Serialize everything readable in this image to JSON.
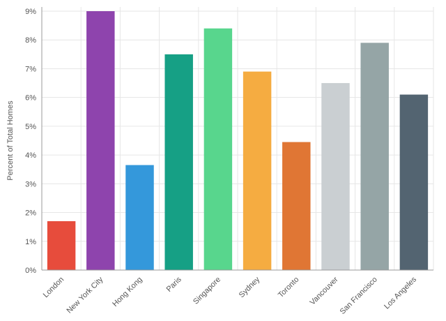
{
  "chart_data": {
    "type": "bar",
    "title": "",
    "xlabel": "",
    "ylabel": "Percent of Total Homes",
    "ylim": [
      0,
      9
    ],
    "y_ticks": [
      "0%",
      "1%",
      "2%",
      "3%",
      "4%",
      "5%",
      "6%",
      "7%",
      "8%",
      "9%"
    ],
    "grid": true,
    "legend": "none",
    "categories": [
      "London",
      "New York City",
      "Hong Kong",
      "Paris",
      "Singapore",
      "Sydney",
      "Toronto",
      "Vancouver",
      "San Francisco",
      "Los Angeles"
    ],
    "values": [
      1.7,
      9.0,
      3.65,
      7.5,
      8.4,
      6.9,
      4.45,
      6.5,
      7.9,
      6.1
    ],
    "colors": [
      "#e74c3c",
      "#8e44ad",
      "#3498db",
      "#16a085",
      "#58d68d",
      "#f5ac41",
      "#e07634",
      "#cacfd2",
      "#95a5a6",
      "#536471"
    ]
  }
}
